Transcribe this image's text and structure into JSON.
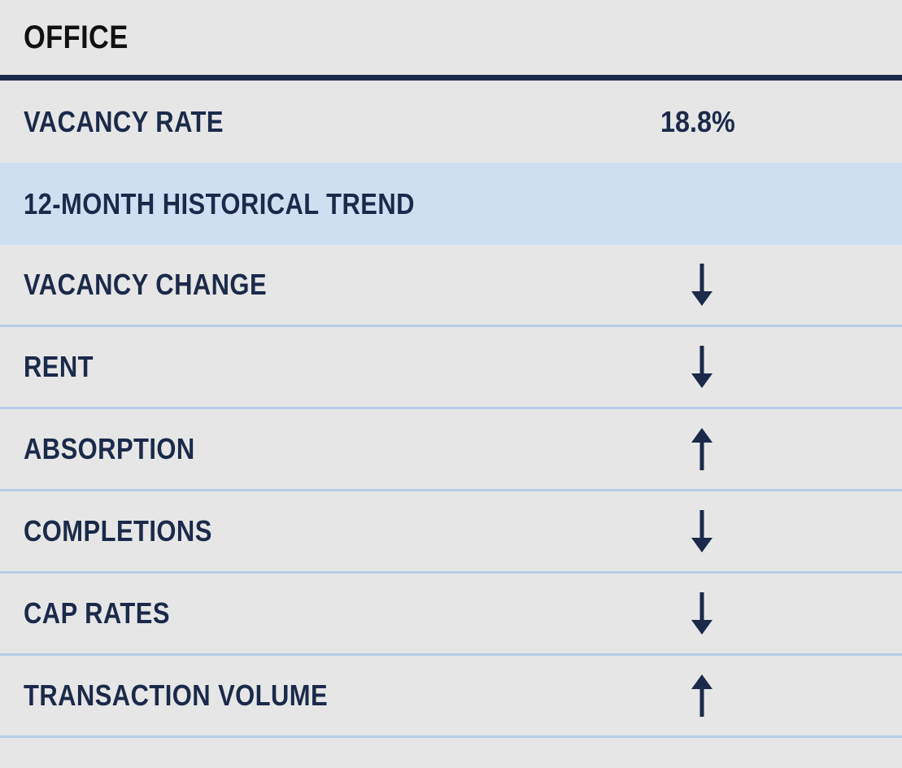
{
  "title": "OFFICE",
  "vacancy_rate": {
    "label": "VACANCY RATE",
    "value": "18.8%"
  },
  "trend_header": "12-MONTH HISTORICAL TREND",
  "trends": [
    {
      "label": "VACANCY CHANGE",
      "direction": "down",
      "icon": "arrow-down-icon"
    },
    {
      "label": "RENT",
      "direction": "down",
      "icon": "arrow-down-icon"
    },
    {
      "label": "ABSORPTION",
      "direction": "up",
      "icon": "arrow-up-icon"
    },
    {
      "label": "COMPLETIONS",
      "direction": "down",
      "icon": "arrow-down-icon"
    },
    {
      "label": "CAP RATES",
      "direction": "down",
      "icon": "arrow-down-icon"
    },
    {
      "label": "TRANSACTION VOLUME",
      "direction": "up",
      "icon": "arrow-up-icon"
    }
  ],
  "colors": {
    "background": "#e6e6e6",
    "navy": "#1b2a4a",
    "title_text": "#111111",
    "trend_header_background": "#cfdff1",
    "divider": "#b7cde6"
  }
}
